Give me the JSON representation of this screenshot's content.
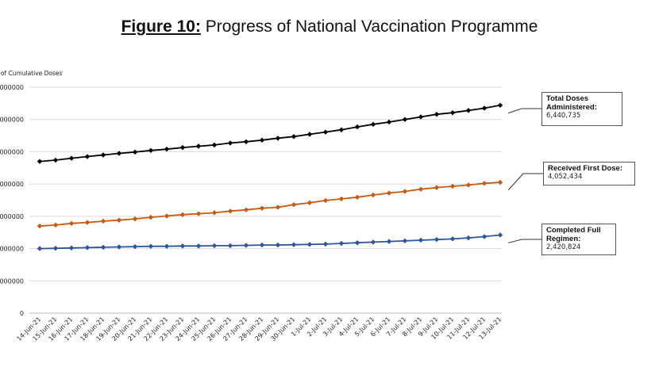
{
  "figure": {
    "title_bold": "Figure 10:",
    "title_rest": " Progress of National Vaccination Programme"
  },
  "chart_data": {
    "type": "line",
    "title": "Progress of National Vaccination Programme",
    "ylabel": "ber of Cumulative Doses",
    "xlabel": "",
    "ylim": [
      0,
      7000000
    ],
    "ytick_labels": [
      "0",
      "000000",
      "000000",
      "000000",
      "000000",
      "000000",
      "000000",
      "000000"
    ],
    "ytick_values": [
      0,
      1000000,
      2000000,
      3000000,
      4000000,
      5000000,
      6000000,
      7000000
    ],
    "grid": true,
    "categories": [
      "14-Jun-21",
      "15-Jun-21",
      "16-Jun-21",
      "17-Jun-21",
      "18-Jun-21",
      "19-Jun-21",
      "20-Jun-21",
      "21-Jun-21",
      "22-Jun-21",
      "23-Jun-21",
      "24-Jun-21",
      "25-Jun-21",
      "26-Jun-21",
      "27-Jun-21",
      "28-Jun-21",
      "29-Jun-21",
      "30-Jun-21",
      "1-Jul-21",
      "2-Jul-21",
      "3-Jul-21",
      "4-Jul-21",
      "5-Jul-21",
      "6-Jul-21",
      "7-Jul-21",
      "8-Jul-21",
      "9-Jul-21",
      "10-Jul-21",
      "11-Jul-21",
      "12-Jul-21",
      "13-Jul-21"
    ],
    "series": [
      {
        "name": "Total Doses Administered",
        "color": "#000000",
        "marker": "diamond",
        "values": [
          4700000,
          4740000,
          4800000,
          4850000,
          4900000,
          4950000,
          4990000,
          5040000,
          5080000,
          5130000,
          5170000,
          5210000,
          5270000,
          5310000,
          5360000,
          5420000,
          5470000,
          5540000,
          5610000,
          5680000,
          5770000,
          5850000,
          5920000,
          6000000,
          6080000,
          6160000,
          6210000,
          6280000,
          6350000,
          6440735
        ]
      },
      {
        "name": "Received First Dose",
        "color": "#c55a11",
        "marker": "diamond",
        "values": [
          2700000,
          2730000,
          2780000,
          2810000,
          2850000,
          2880000,
          2920000,
          2970000,
          3010000,
          3050000,
          3080000,
          3110000,
          3160000,
          3200000,
          3250000,
          3280000,
          3360000,
          3420000,
          3490000,
          3540000,
          3590000,
          3660000,
          3720000,
          3770000,
          3840000,
          3890000,
          3930000,
          3970000,
          4020000,
          4052434
        ]
      },
      {
        "name": "Completed Full Regimen",
        "color": "#2e5597",
        "marker": "diamond",
        "values": [
          2000000,
          2010000,
          2020000,
          2030000,
          2040000,
          2050000,
          2060000,
          2070000,
          2070000,
          2080000,
          2080000,
          2090000,
          2090000,
          2100000,
          2110000,
          2110000,
          2120000,
          2130000,
          2140000,
          2160000,
          2180000,
          2200000,
          2220000,
          2240000,
          2260000,
          2280000,
          2300000,
          2330000,
          2370000,
          2420824
        ]
      }
    ],
    "annotations": [
      {
        "series": "Total Doses Administered",
        "label": "Total Doses Administered:",
        "value": "6,440,735"
      },
      {
        "series": "Received First Dose",
        "label": "Received First Dose:",
        "value": "4,052,434"
      },
      {
        "series": "Completed Full Regimen",
        "label": "Completed Full Regimen:",
        "value": "2,420,824"
      }
    ]
  }
}
